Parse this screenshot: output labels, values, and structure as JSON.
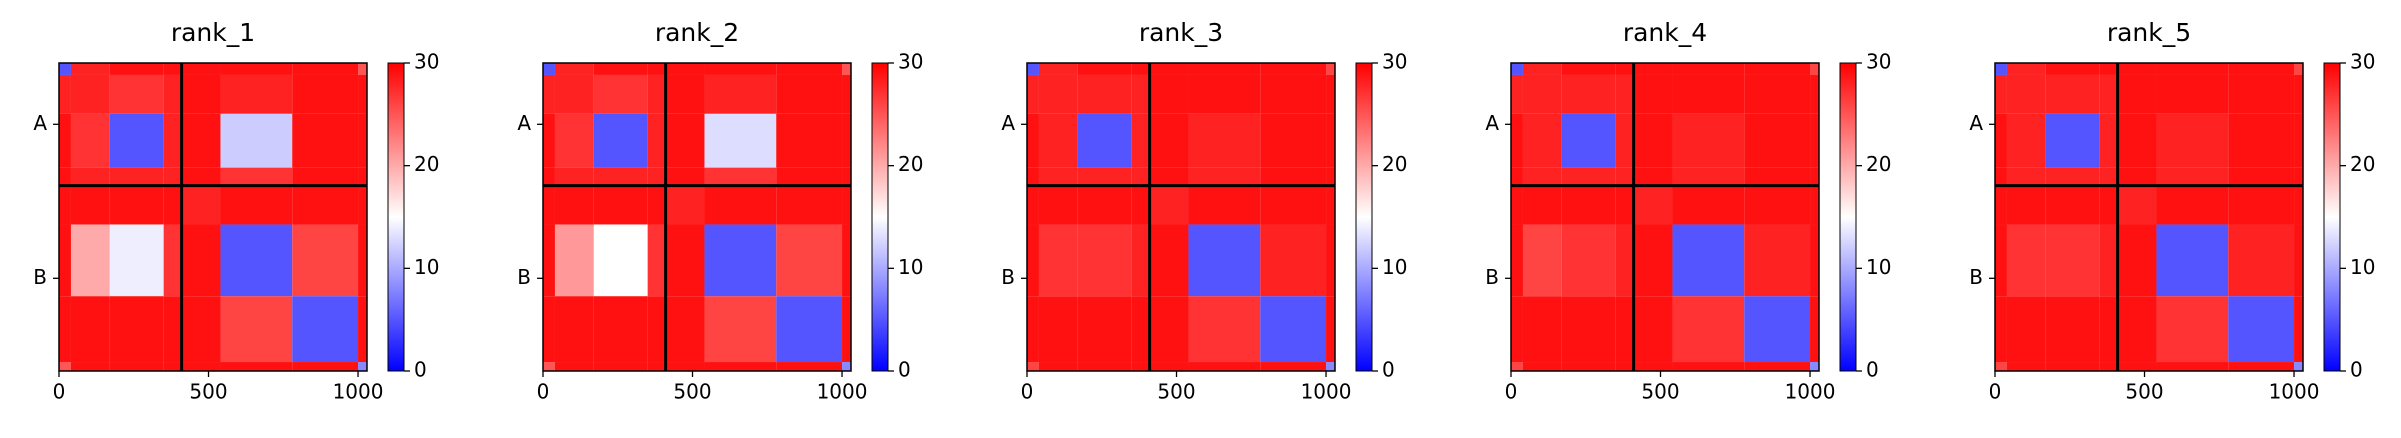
{
  "chart_data": [
    {
      "type": "heatmap",
      "title": "rank_1",
      "cmap": "bwr",
      "bins": [
        0,
        40,
        170,
        350,
        410,
        540,
        780,
        1000,
        1030
      ],
      "values": [
        [
          5,
          28,
          29,
          29,
          29,
          29,
          29,
          25
        ],
        [
          28,
          28,
          27,
          28,
          29,
          28,
          29,
          29
        ],
        [
          29,
          27,
          5,
          28,
          29,
          12,
          29,
          29
        ],
        [
          29,
          28,
          28,
          28,
          29,
          27,
          29,
          29
        ],
        [
          29,
          29,
          29,
          29,
          28,
          29,
          29,
          29
        ],
        [
          29,
          20,
          14,
          27,
          29,
          5,
          26,
          29
        ],
        [
          29,
          29,
          29,
          29,
          29,
          26,
          5,
          29
        ],
        [
          25,
          29,
          29,
          29,
          29,
          29,
          29,
          8
        ]
      ],
      "xlim": [
        0,
        1030
      ],
      "ylim": [
        1030,
        0
      ],
      "xticks": [
        0,
        500,
        1000
      ],
      "yticks": [
        {
          "value": 205,
          "label": "A"
        },
        {
          "value": 720,
          "label": "B"
        }
      ],
      "chain_breaks": [
        410
      ],
      "colorbar": {
        "lim": [
          0,
          30
        ],
        "ticks": [
          0,
          10,
          20,
          30
        ]
      }
    },
    {
      "type": "heatmap",
      "title": "rank_2",
      "cmap": "bwr",
      "bins": [
        0,
        40,
        170,
        350,
        410,
        540,
        780,
        1000,
        1030
      ],
      "values": [
        [
          5,
          28,
          29,
          29,
          29,
          29,
          29,
          25
        ],
        [
          28,
          28,
          27,
          28,
          29,
          28,
          29,
          29
        ],
        [
          29,
          27,
          5,
          28,
          29,
          13,
          29,
          29
        ],
        [
          29,
          28,
          28,
          28,
          29,
          27,
          29,
          29
        ],
        [
          29,
          29,
          29,
          29,
          28,
          29,
          29,
          29
        ],
        [
          29,
          21,
          15,
          27,
          29,
          5,
          26,
          29
        ],
        [
          29,
          29,
          29,
          29,
          29,
          26,
          5,
          29
        ],
        [
          25,
          29,
          29,
          29,
          29,
          29,
          29,
          8
        ]
      ],
      "xlim": [
        0,
        1030
      ],
      "ylim": [
        1030,
        0
      ],
      "xticks": [
        0,
        500,
        1000
      ],
      "yticks": [
        {
          "value": 205,
          "label": "A"
        },
        {
          "value": 720,
          "label": "B"
        }
      ],
      "chain_breaks": [
        410
      ],
      "colorbar": {
        "lim": [
          0,
          30
        ],
        "ticks": [
          0,
          10,
          20,
          30
        ]
      }
    },
    {
      "type": "heatmap",
      "title": "rank_3",
      "cmap": "bwr",
      "bins": [
        0,
        40,
        170,
        350,
        410,
        540,
        780,
        1000,
        1030
      ],
      "values": [
        [
          5,
          28,
          29,
          29,
          29,
          29,
          29,
          26
        ],
        [
          28,
          28,
          28,
          28,
          29,
          29,
          29,
          29
        ],
        [
          29,
          28,
          5,
          28,
          29,
          28,
          29,
          29
        ],
        [
          29,
          28,
          28,
          28,
          29,
          28,
          29,
          29
        ],
        [
          29,
          29,
          29,
          29,
          28,
          29,
          29,
          29
        ],
        [
          29,
          27,
          27,
          28,
          29,
          5,
          28,
          29
        ],
        [
          29,
          29,
          29,
          29,
          29,
          27,
          5,
          29
        ],
        [
          26,
          29,
          29,
          29,
          29,
          29,
          29,
          8
        ]
      ],
      "xlim": [
        0,
        1030
      ],
      "ylim": [
        1030,
        0
      ],
      "xticks": [
        0,
        500,
        1000
      ],
      "yticks": [
        {
          "value": 205,
          "label": "A"
        },
        {
          "value": 720,
          "label": "B"
        }
      ],
      "chain_breaks": [
        410
      ],
      "colorbar": {
        "lim": [
          0,
          30
        ],
        "ticks": [
          0,
          10,
          20,
          30
        ]
      }
    },
    {
      "type": "heatmap",
      "title": "rank_4",
      "cmap": "bwr",
      "bins": [
        0,
        40,
        170,
        350,
        410,
        540,
        780,
        1000,
        1030
      ],
      "values": [
        [
          5,
          28,
          29,
          29,
          29,
          29,
          29,
          26
        ],
        [
          28,
          28,
          28,
          28,
          29,
          29,
          29,
          29
        ],
        [
          29,
          28,
          5,
          28,
          29,
          28,
          29,
          29
        ],
        [
          29,
          28,
          28,
          28,
          29,
          28,
          29,
          29
        ],
        [
          29,
          29,
          29,
          29,
          28,
          29,
          29,
          29
        ],
        [
          29,
          26,
          27,
          28,
          29,
          5,
          28,
          29
        ],
        [
          29,
          29,
          29,
          29,
          29,
          27,
          5,
          29
        ],
        [
          26,
          29,
          29,
          29,
          29,
          29,
          29,
          8
        ]
      ],
      "xlim": [
        0,
        1030
      ],
      "ylim": [
        1030,
        0
      ],
      "xticks": [
        0,
        500,
        1000
      ],
      "yticks": [
        {
          "value": 205,
          "label": "A"
        },
        {
          "value": 720,
          "label": "B"
        }
      ],
      "chain_breaks": [
        410
      ],
      "colorbar": {
        "lim": [
          0,
          30
        ],
        "ticks": [
          0,
          10,
          20,
          30
        ]
      }
    },
    {
      "type": "heatmap",
      "title": "rank_5",
      "cmap": "bwr",
      "bins": [
        0,
        40,
        170,
        350,
        410,
        540,
        780,
        1000,
        1030
      ],
      "values": [
        [
          5,
          28,
          29,
          29,
          29,
          29,
          29,
          26
        ],
        [
          28,
          28,
          28,
          28,
          29,
          29,
          29,
          29
        ],
        [
          29,
          28,
          5,
          28,
          29,
          28,
          29,
          29
        ],
        [
          29,
          28,
          28,
          28,
          29,
          28,
          29,
          29
        ],
        [
          29,
          29,
          29,
          29,
          28,
          29,
          29,
          29
        ],
        [
          29,
          27,
          27,
          28,
          29,
          5,
          28,
          29
        ],
        [
          29,
          29,
          29,
          29,
          29,
          27,
          5,
          29
        ],
        [
          26,
          29,
          29,
          29,
          29,
          29,
          29,
          8
        ]
      ],
      "xlim": [
        0,
        1030
      ],
      "ylim": [
        1030,
        0
      ],
      "xticks": [
        0,
        500,
        1000
      ],
      "yticks": [
        {
          "value": 205,
          "label": "A"
        },
        {
          "value": 720,
          "label": "B"
        }
      ],
      "chain_breaks": [
        410
      ],
      "colorbar": {
        "lim": [
          0,
          30
        ],
        "ticks": [
          0,
          10,
          20,
          30
        ]
      }
    }
  ]
}
